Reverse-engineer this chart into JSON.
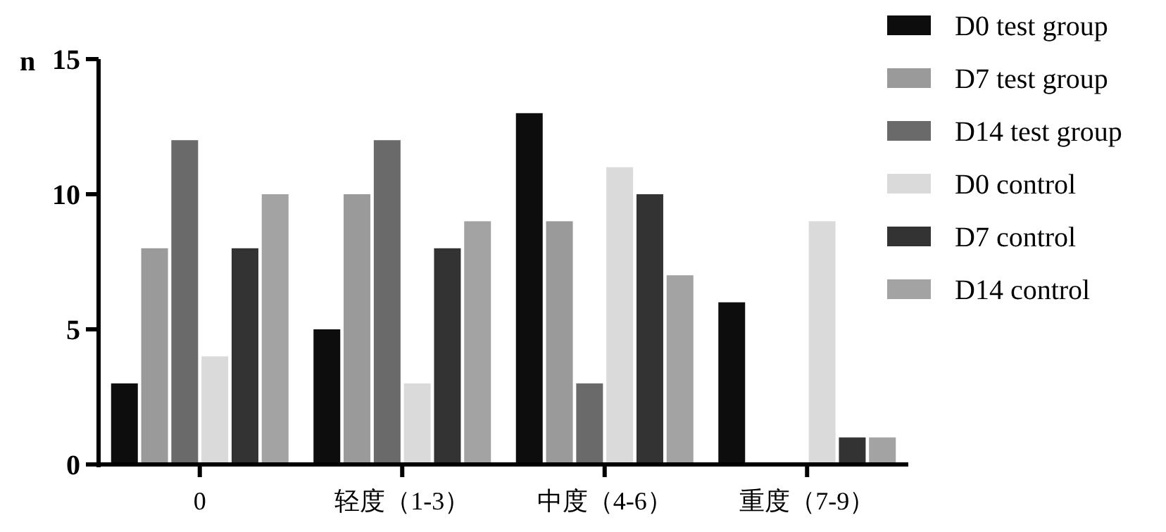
{
  "chart_data": {
    "type": "bar",
    "ylabel": "n",
    "categories": [
      "0",
      "轻度（1-3）",
      "中度（4-6）",
      "重度（7-9）"
    ],
    "series": [
      {
        "name": "D0 test group",
        "color": "#0d0d0d",
        "values": [
          3,
          5,
          13,
          6
        ]
      },
      {
        "name": "D7 test group",
        "color": "#9a9a9a",
        "values": [
          8,
          10,
          9,
          0
        ]
      },
      {
        "name": "D14 test group",
        "color": "#6a6a6a",
        "values": [
          12,
          12,
          3,
          0
        ]
      },
      {
        "name": "D0 control",
        "color": "#dadada",
        "values": [
          4,
          3,
          11,
          9
        ]
      },
      {
        "name": "D7 control",
        "color": "#333333",
        "values": [
          8,
          8,
          10,
          1
        ]
      },
      {
        "name": "D14 control",
        "color": "#a3a3a3",
        "values": [
          10,
          9,
          7,
          1
        ]
      }
    ],
    "ylim": [
      0,
      15
    ],
    "yticks": [
      0,
      5,
      10,
      15
    ],
    "grid": false,
    "legend": "right"
  }
}
